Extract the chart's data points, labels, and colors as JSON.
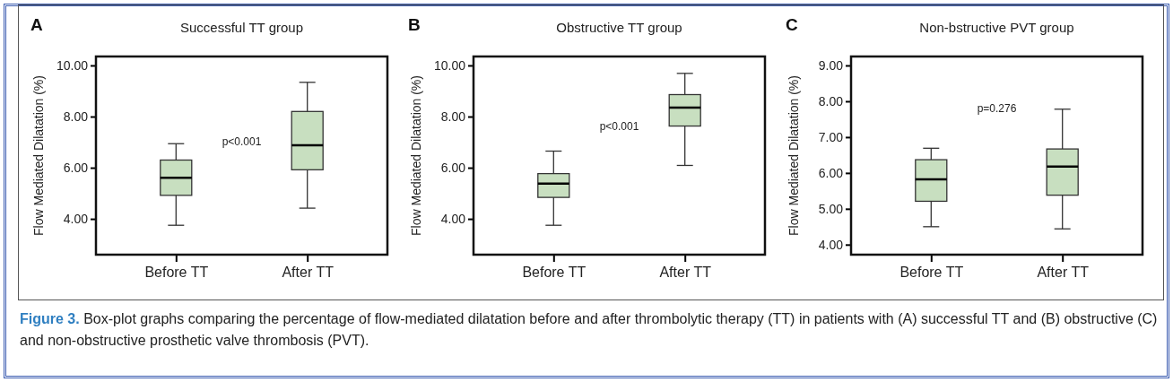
{
  "chart_data": [
    {
      "type": "box",
      "title": "Successful TT group",
      "ylabel": "Flow Mediated Dilatation (%)",
      "categories": [
        "Before TT",
        "After TT"
      ],
      "series": [
        {
          "color": "#c8dfc0",
          "boxes": [
            {
              "low": 3.75,
              "q1": 4.92,
              "median": 5.61,
              "q3": 6.3,
              "high": 6.94
            },
            {
              "low": 4.42,
              "q1": 5.92,
              "median": 6.88,
              "q3": 8.2,
              "high": 9.34
            }
          ]
        }
      ],
      "ylim": [
        2.6,
        10.35
      ],
      "yticks": [
        {
          "value": 4,
          "label": "4.00"
        },
        {
          "value": 6,
          "label": "6.00"
        },
        {
          "value": 8,
          "label": "8.00"
        },
        {
          "value": 10,
          "label": "10.00"
        }
      ],
      "annotations": [
        "A",
        "p<0.001",
        "Figure 3. Box-plot graphs comparing the percentage of flow-mediated dilatation before and after thrombolytic therapy (TT) in patients with (A) successful TT and (B) obstructive (C) and non-obstructive prosthetic valve thrombosis (PVT)."
      ]
    },
    {
      "type": "box",
      "title": "Obstructive TT group",
      "ylabel": "Flow Mediated Dilatation (%)",
      "categories": [
        "Before TT",
        "After TT"
      ],
      "series": [
        {
          "color": "#c8dfc0",
          "boxes": [
            {
              "low": 3.75,
              "q1": 4.84,
              "median": 5.38,
              "q3": 5.77,
              "high": 6.65
            },
            {
              "low": 6.09,
              "q1": 7.63,
              "median": 8.35,
              "q3": 8.86,
              "high": 9.69
            }
          ]
        }
      ],
      "ylim": [
        2.6,
        10.35
      ],
      "yticks": [
        {
          "value": 4,
          "label": "4.00"
        },
        {
          "value": 6,
          "label": "6.00"
        },
        {
          "value": 8,
          "label": "8.00"
        },
        {
          "value": 10,
          "label": "10.00"
        }
      ],
      "annotations": [
        "B",
        "p<0.001"
      ]
    },
    {
      "type": "box",
      "title": "Non-bstructive PVT group",
      "ylabel": "Flow Mediated Dilatation (%)",
      "categories": [
        "Before TT",
        "After TT"
      ],
      "series": [
        {
          "color": "#c8dfc0",
          "boxes": [
            {
              "low": 4.5,
              "q1": 5.21,
              "median": 5.82,
              "q3": 6.37,
              "high": 6.69
            },
            {
              "low": 4.44,
              "q1": 5.38,
              "median": 6.18,
              "q3": 6.67,
              "high": 7.78
            }
          ]
        }
      ],
      "ylim": [
        3.72,
        9.25
      ],
      "yticks": [
        {
          "value": 4,
          "label": "4.00"
        },
        {
          "value": 5,
          "label": "5.00"
        },
        {
          "value": 6,
          "label": "6.00"
        },
        {
          "value": 7,
          "label": "7.00"
        },
        {
          "value": 8,
          "label": "8.00"
        },
        {
          "value": 9,
          "label": "9.00"
        }
      ],
      "annotations": [
        "C",
        "p=0.276"
      ]
    }
  ]
}
